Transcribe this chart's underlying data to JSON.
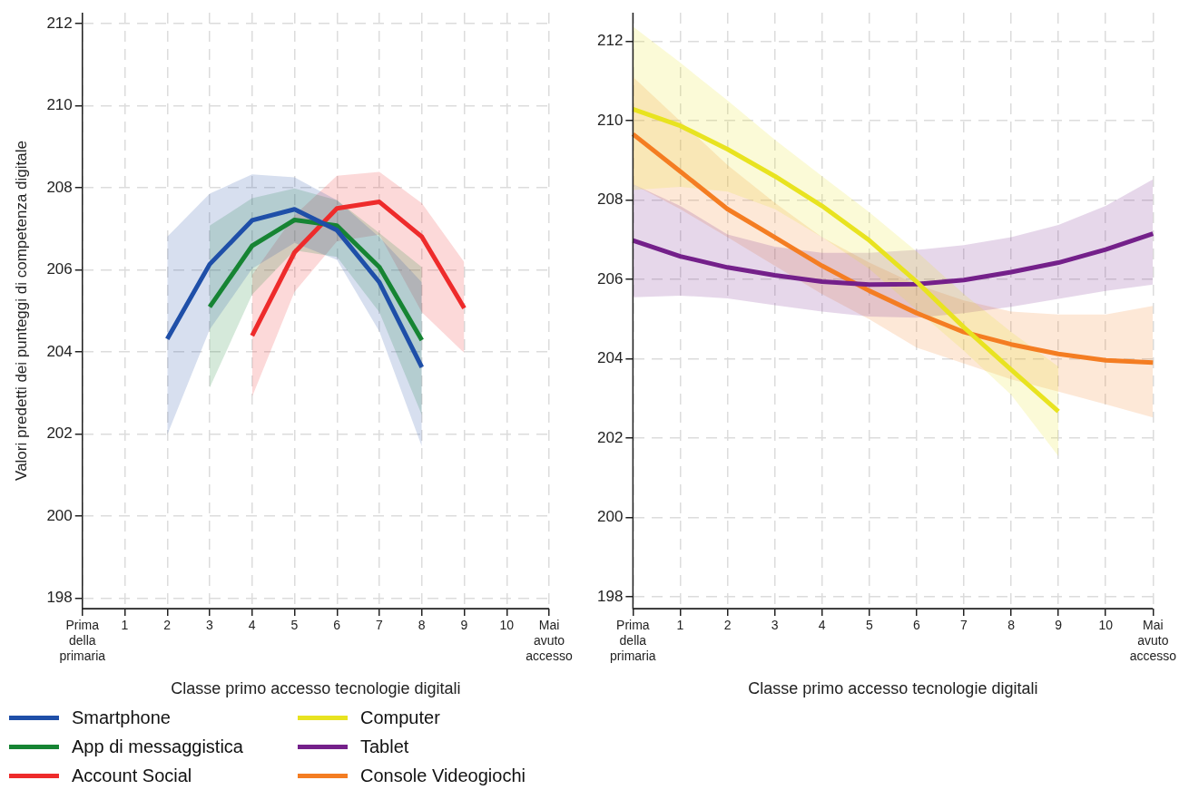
{
  "chart_data": [
    {
      "type": "line",
      "ylabel": "Valori predetti dei punteggi di competenza digitale",
      "xlabel": "Classe primo accesso tecnologie digitali",
      "categories": [
        "Prima della primaria",
        "1",
        "2",
        "3",
        "4",
        "5",
        "6",
        "7",
        "8",
        "9",
        "10",
        "Mai avuto accesso"
      ],
      "ylim": [
        197.75,
        212.27
      ],
      "yticks": [
        198,
        200,
        202,
        204,
        206,
        208,
        210,
        212
      ],
      "grid": true,
      "legend": "bottom",
      "marker": "none",
      "line_style": "solid",
      "series": [
        {
          "name": "Smartphone",
          "color": "#1f4fa8",
          "values": [
            null,
            null,
            204.32,
            206.14,
            207.21,
            207.48,
            206.97,
            205.7,
            203.63,
            null,
            null,
            null
          ],
          "lower": [
            null,
            null,
            201.98,
            204.55,
            206.03,
            206.66,
            206.25,
            204.5,
            201.7,
            null,
            null,
            null
          ],
          "upper": [
            null,
            null,
            206.81,
            207.86,
            208.33,
            208.26,
            207.7,
            206.8,
            205.7,
            null,
            null,
            null
          ]
        },
        {
          "name": "App di messaggistica",
          "color": "#168433",
          "values": [
            null,
            null,
            null,
            205.1,
            206.59,
            207.22,
            207.08,
            206.07,
            204.29,
            null,
            null,
            null
          ],
          "lower": [
            null,
            null,
            null,
            203.13,
            205.4,
            206.48,
            206.32,
            204.97,
            202.47,
            null,
            null,
            null
          ],
          "upper": [
            null,
            null,
            null,
            207.08,
            207.75,
            207.99,
            207.7,
            206.9,
            206.07,
            null,
            null,
            null
          ]
        },
        {
          "name": "Account Social",
          "color": "#ee2b2b",
          "values": [
            null,
            null,
            null,
            null,
            204.4,
            206.43,
            207.5,
            207.66,
            206.81,
            205.07,
            null,
            null
          ],
          "lower": [
            null,
            null,
            null,
            null,
            202.91,
            205.47,
            206.7,
            206.86,
            204.97,
            203.98,
            null,
            null
          ],
          "upper": [
            null,
            null,
            null,
            null,
            205.88,
            207.33,
            208.3,
            208.39,
            207.63,
            206.19,
            null,
            null
          ]
        }
      ]
    },
    {
      "type": "line",
      "xlabel": "Classe primo accesso tecnologie digitali",
      "categories": [
        "Prima della primaria",
        "1",
        "2",
        "3",
        "4",
        "5",
        "6",
        "7",
        "8",
        "9",
        "10",
        "Mai avuto accesso"
      ],
      "ylim": [
        197.7,
        212.72
      ],
      "yticks": [
        198,
        200,
        202,
        204,
        206,
        208,
        210,
        212
      ],
      "grid": true,
      "legend": "bottom",
      "marker": "none",
      "line_style": "solid",
      "series": [
        {
          "name": "Computer",
          "color": "#e8e320",
          "values": [
            210.29,
            209.87,
            209.28,
            208.6,
            207.85,
            206.98,
            205.94,
            204.79,
            203.72,
            202.67,
            null,
            null
          ],
          "lower": [
            208.25,
            208.33,
            208.21,
            207.77,
            207.06,
            206.26,
            205.23,
            204.2,
            203.09,
            201.54,
            null,
            null
          ],
          "upper": [
            212.37,
            211.46,
            210.51,
            209.52,
            208.6,
            207.69,
            206.7,
            205.63,
            204.67,
            203.8,
            null,
            null
          ]
        },
        {
          "name": "Tablet",
          "color": "#74208a",
          "values": [
            206.98,
            206.58,
            206.3,
            206.1,
            205.94,
            205.87,
            205.88,
            205.98,
            206.18,
            206.42,
            206.75,
            207.15
          ],
          "lower": [
            205.55,
            205.59,
            205.52,
            205.35,
            205.19,
            205.06,
            205.03,
            205.15,
            205.31,
            205.51,
            205.71,
            205.87
          ],
          "upper": [
            208.4,
            207.85,
            207.13,
            206.82,
            206.67,
            206.67,
            206.74,
            206.86,
            207.06,
            207.37,
            207.85,
            208.52
          ]
        },
        {
          "name": "Console Videogiochi",
          "color": "#f47d22",
          "values": [
            209.66,
            208.72,
            207.77,
            207.06,
            206.34,
            205.71,
            205.15,
            204.67,
            204.36,
            204.12,
            203.96,
            203.9
          ],
          "lower": [
            208.4,
            207.77,
            207.06,
            206.34,
            205.63,
            204.99,
            204.28,
            203.88,
            203.48,
            203.17,
            202.85,
            202.52
          ],
          "upper": [
            211.1,
            209.99,
            208.88,
            207.93,
            207.06,
            206.42,
            205.87,
            205.47,
            205.19,
            205.11,
            205.11,
            205.33
          ]
        }
      ]
    }
  ]
}
